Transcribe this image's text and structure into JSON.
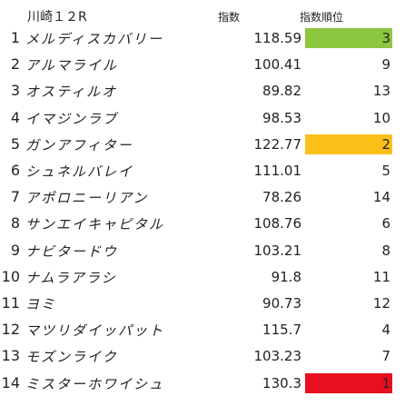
{
  "header": {
    "race": "川崎１２R",
    "index_label": "指数",
    "rank_label": "指数順位"
  },
  "colors": {
    "rank1": "#e8101e",
    "rank2": "#fbbf1a",
    "rank3": "#8dc63f"
  },
  "rows": [
    {
      "num": "1",
      "name": "メルディスカバリー",
      "value": "118.59",
      "rank": "3",
      "highlight": "rank3"
    },
    {
      "num": "2",
      "name": "アルマライル",
      "value": "100.41",
      "rank": "9",
      "highlight": ""
    },
    {
      "num": "3",
      "name": "オスティルオ",
      "value": "89.82",
      "rank": "13",
      "highlight": ""
    },
    {
      "num": "4",
      "name": "イマジンラブ",
      "value": "98.53",
      "rank": "10",
      "highlight": ""
    },
    {
      "num": "5",
      "name": "ガンアフィター",
      "value": "122.77",
      "rank": "2",
      "highlight": "rank2"
    },
    {
      "num": "6",
      "name": "シュネルバレイ",
      "value": "111.01",
      "rank": "5",
      "highlight": ""
    },
    {
      "num": "7",
      "name": "アポロニーリアン",
      "value": "78.26",
      "rank": "14",
      "highlight": ""
    },
    {
      "num": "8",
      "name": "サンエイキャピタル",
      "value": "108.76",
      "rank": "6",
      "highlight": ""
    },
    {
      "num": "9",
      "name": "ナビタードウ",
      "value": "103.21",
      "rank": "8",
      "highlight": ""
    },
    {
      "num": "10",
      "name": "ナムラアラシ",
      "value": "91.8",
      "rank": "11",
      "highlight": ""
    },
    {
      "num": "11",
      "name": "ヨミ",
      "value": "90.73",
      "rank": "12",
      "highlight": ""
    },
    {
      "num": "12",
      "name": "マツリダイッパット",
      "value": "115.7",
      "rank": "4",
      "highlight": ""
    },
    {
      "num": "13",
      "name": "モズンライク",
      "value": "103.23",
      "rank": "7",
      "highlight": ""
    },
    {
      "num": "14",
      "name": "ミスターホワイシュ",
      "value": "130.3",
      "rank": "1",
      "highlight": "rank1"
    }
  ]
}
